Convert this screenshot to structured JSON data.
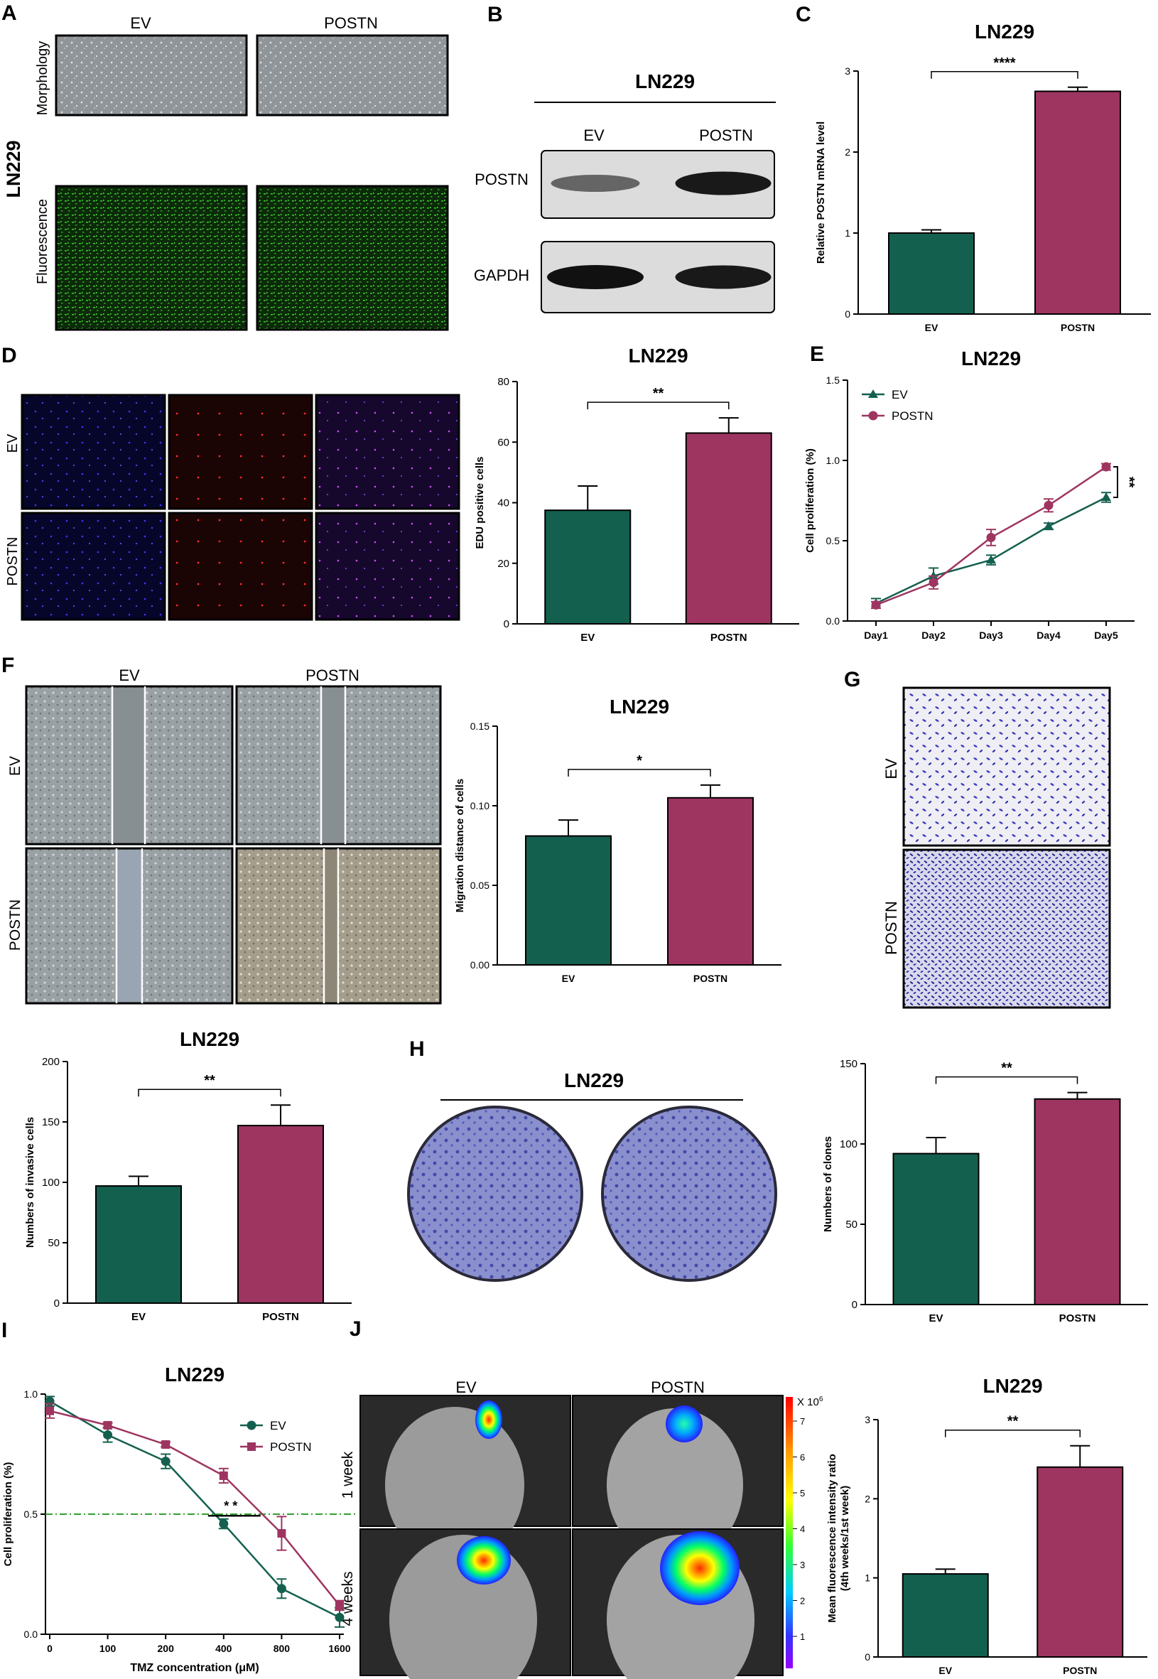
{
  "colors": {
    "ev": "#14604f",
    "postn": "#9e3561",
    "threshold": "#2fa12f",
    "axis": "#000000",
    "micro_gray": "#8f9599",
    "fluor_bg": "#0c2a0a",
    "fluor_fg": "#39c92a",
    "blot_bg": "#dcdcdc",
    "crystal_violet": "#3b3ec0"
  },
  "panels": {
    "A": {
      "letter": "A",
      "cell_line": "LN229",
      "col_labels": [
        "EV",
        "POSTN"
      ],
      "row_labels": [
        "Morphology",
        "Fluorescence"
      ]
    },
    "B": {
      "letter": "B",
      "title": "LN229",
      "lanes": [
        "EV",
        "POSTN"
      ],
      "bands": [
        "POSTN",
        "GAPDH"
      ],
      "band_intensity": [
        [
          0.45,
          0.95
        ],
        [
          1.0,
          0.95
        ]
      ]
    },
    "D": {
      "letter": "D",
      "row_labels": [
        "EV",
        "POSTN"
      ]
    },
    "F": {
      "letter": "F",
      "col_labels": [
        "EV",
        "POSTN"
      ],
      "row_labels": [
        "EV",
        "POSTN"
      ]
    },
    "G": {
      "letter": "G",
      "row_labels": [
        "EV",
        "POSTN"
      ]
    },
    "H": {
      "letter": "H",
      "title": "LN229"
    },
    "J": {
      "letter": "J",
      "col_labels": [
        "EV",
        "POSTN"
      ],
      "row_labels": [
        "1 week",
        "4 weeks"
      ],
      "scale_multiplier": "X 10",
      "scale_exponent": "6",
      "scale_ticks": [
        "7",
        "6",
        "5",
        "4",
        "3",
        "2",
        "1"
      ]
    }
  },
  "chart_data": [
    {
      "id": "C",
      "letter": "C",
      "type": "bar",
      "title": "LN229",
      "categories": [
        "EV",
        "POSTN"
      ],
      "values": [
        1.0,
        2.75
      ],
      "errors": [
        0.04,
        0.05
      ],
      "ylabel": "Relative POSTN mRNA level",
      "ylim": [
        0,
        3
      ],
      "yticks": [
        "0",
        "1",
        "2",
        "3"
      ],
      "significance": "****",
      "grid": false
    },
    {
      "id": "D",
      "type": "bar",
      "title": "LN229",
      "categories": [
        "EV",
        "POSTN"
      ],
      "values": [
        37.5,
        63
      ],
      "errors": [
        8,
        5
      ],
      "ylabel": "EDU positive cells",
      "ylim": [
        0,
        80
      ],
      "yticks": [
        "0",
        "20",
        "40",
        "60",
        "80"
      ],
      "significance": "**",
      "grid": false
    },
    {
      "id": "E",
      "letter": "E",
      "type": "line",
      "title": "LN229",
      "x": [
        "Day1",
        "Day2",
        "Day3",
        "Day4",
        "Day5"
      ],
      "series": [
        {
          "name": "EV",
          "values": [
            0.11,
            0.28,
            0.38,
            0.59,
            0.77
          ],
          "errors": [
            0.03,
            0.05,
            0.03,
            0.02,
            0.03
          ]
        },
        {
          "name": "POSTN",
          "values": [
            0.1,
            0.24,
            0.52,
            0.72,
            0.96
          ],
          "errors": [
            0.02,
            0.04,
            0.05,
            0.04,
            0.02
          ]
        }
      ],
      "ylabel": "Cell proliferation (%)",
      "ylim": [
        0,
        1.5
      ],
      "yticks": [
        "0.0",
        "0.5",
        "1.0",
        "1.5"
      ],
      "significance": "**",
      "legend": "top-left",
      "grid": false
    },
    {
      "id": "F",
      "type": "bar",
      "title": "LN229",
      "categories": [
        "EV",
        "POSTN"
      ],
      "values": [
        0.081,
        0.105
      ],
      "errors": [
        0.01,
        0.008
      ],
      "ylabel": "Migration distance of cells",
      "ylim": [
        0,
        0.15
      ],
      "yticks": [
        "0.00",
        "0.05",
        "0.10",
        "0.15"
      ],
      "significance": "*",
      "grid": false
    },
    {
      "id": "G",
      "type": "bar",
      "title": "LN229",
      "categories": [
        "EV",
        "POSTN"
      ],
      "values": [
        97,
        147
      ],
      "errors": [
        8,
        17
      ],
      "ylabel": "Numbers of invasive cells",
      "ylim": [
        0,
        200
      ],
      "yticks": [
        "0",
        "50",
        "100",
        "150",
        "200"
      ],
      "significance": "**",
      "grid": false
    },
    {
      "id": "H",
      "type": "bar",
      "title": "",
      "categories": [
        "EV",
        "POSTN"
      ],
      "values": [
        94,
        128
      ],
      "errors": [
        10,
        4
      ],
      "ylabel": "Numbers of clones",
      "ylim": [
        0,
        150
      ],
      "yticks": [
        "0",
        "50",
        "100",
        "150"
      ],
      "significance": "**",
      "grid": false
    },
    {
      "id": "I",
      "letter": "I",
      "type": "line",
      "title": "LN229",
      "x": [
        "0",
        "100",
        "200",
        "400",
        "800",
        "1600"
      ],
      "series": [
        {
          "name": "EV",
          "values": [
            0.97,
            0.83,
            0.72,
            0.46,
            0.19,
            0.07
          ],
          "errors": [
            0.02,
            0.03,
            0.03,
            0.02,
            0.04,
            0.04
          ]
        },
        {
          "name": "POSTN",
          "values": [
            0.93,
            0.87,
            0.79,
            0.66,
            0.42,
            0.12
          ],
          "errors": [
            0.03,
            0.01,
            0.01,
            0.03,
            0.07,
            0.02
          ]
        }
      ],
      "xlabel": "TMZ concentration (μM)",
      "ylabel": "Cell proliferation (%)",
      "ylim": [
        0,
        1.0
      ],
      "yticks": [
        "0.0",
        "0.5",
        "1.0"
      ],
      "threshold": 0.5,
      "significance": "* *",
      "legend": "top-right",
      "grid": false
    },
    {
      "id": "J",
      "type": "bar",
      "title": "LN229",
      "categories": [
        "EV",
        "POSTN"
      ],
      "values": [
        1.05,
        2.4
      ],
      "errors": [
        0.06,
        0.27
      ],
      "ylabel": "Mean fluorescence intensity ratio",
      "ylabel2": "(4th weeks/1st week)",
      "ylim": [
        0,
        3
      ],
      "yticks": [
        "0",
        "1",
        "2",
        "3"
      ],
      "significance": "**",
      "grid": false
    }
  ]
}
